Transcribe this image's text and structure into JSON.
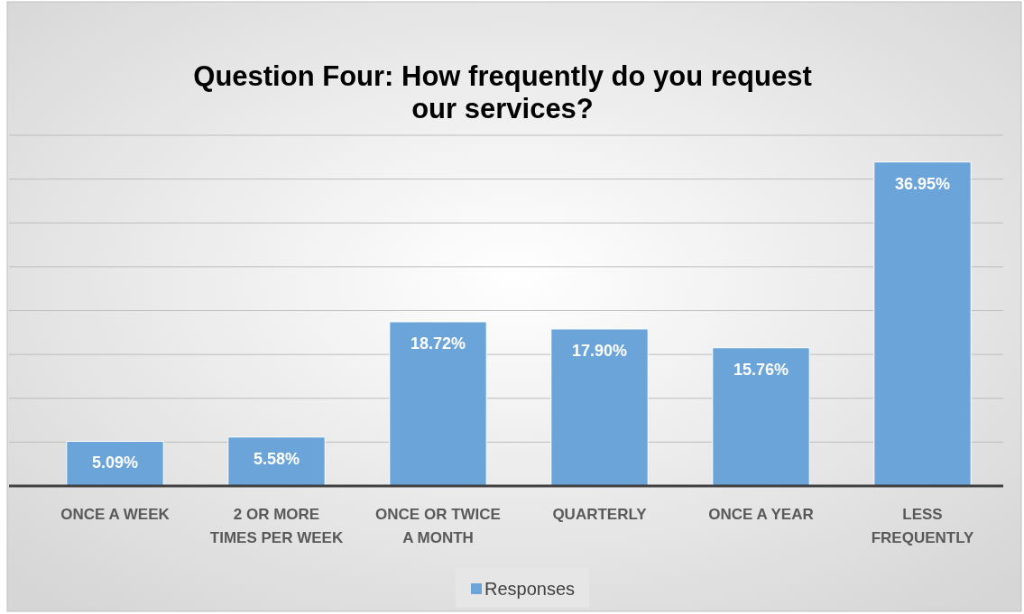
{
  "chart_data": {
    "type": "bar",
    "title": "Question Four: How frequently do you request our services?",
    "categories": [
      "ONCE A WEEK",
      "2 OR MORE TIMES PER WEEK",
      "ONCE OR TWICE A MONTH",
      "QUARTERLY",
      "ONCE A YEAR",
      "LESS FREQUENTLY"
    ],
    "series": [
      {
        "name": "Responses",
        "color": "#6aa4d8",
        "values": [
          5.09,
          5.58,
          18.72,
          17.9,
          15.76,
          36.95
        ],
        "value_labels": [
          "5.09%",
          "5.58%",
          "18.72%",
          "17.90%",
          "15.76%",
          "36.95%"
        ]
      }
    ],
    "ylim": [
      0,
      40
    ],
    "yticks": [
      {
        "value": 0,
        "label": null
      },
      {
        "value": 5,
        "label": null
      },
      {
        "value": 10,
        "label": null
      },
      {
        "value": 15,
        "label": null
      },
      {
        "value": 20,
        "label": null
      },
      {
        "value": 25,
        "label": null
      },
      {
        "value": 30,
        "label": null
      },
      {
        "value": 35,
        "label": null
      },
      {
        "value": 40,
        "label": null
      }
    ],
    "grid": "y",
    "legend": "bottom",
    "tick_labels": "x"
  }
}
